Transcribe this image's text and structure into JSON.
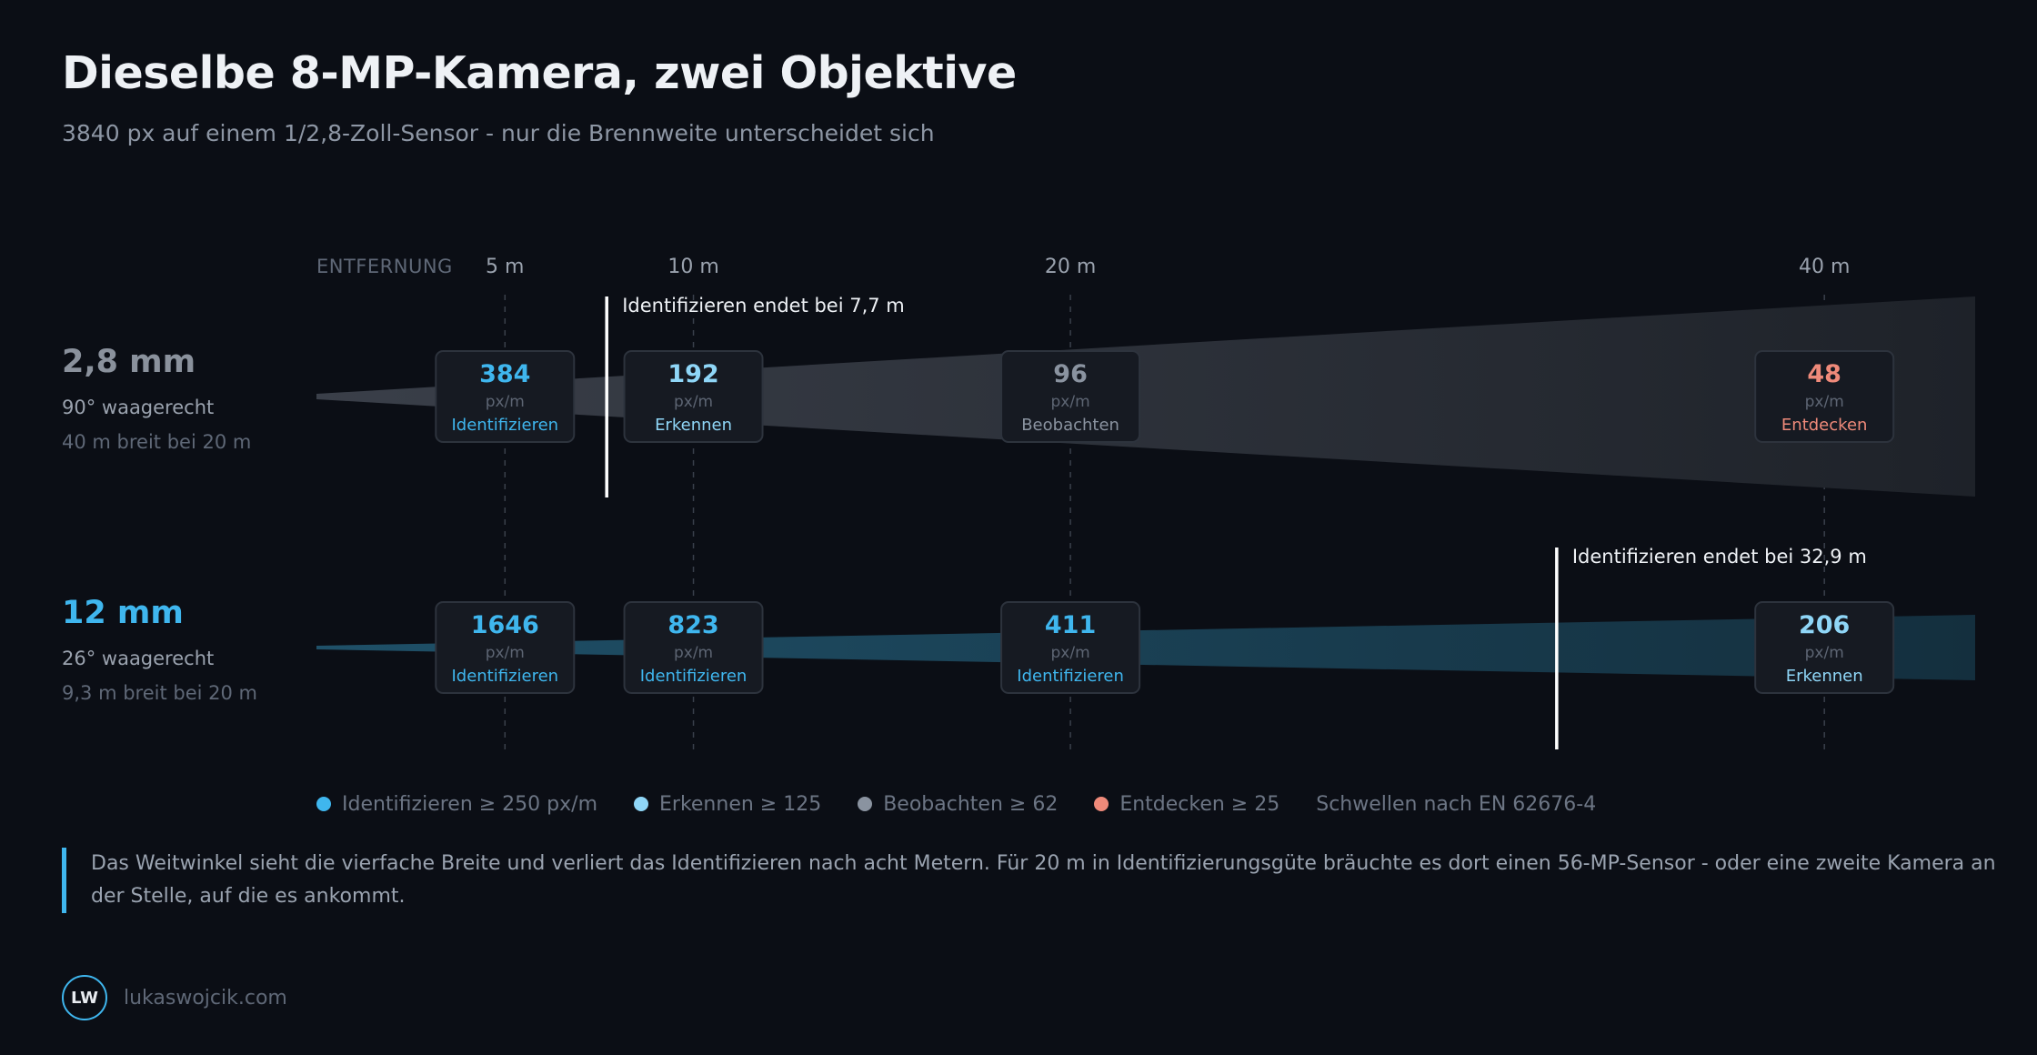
{
  "title": "Dieselbe 8-MP-Kamera, zwei Objektive",
  "subtitle": "3840 px auf einem 1/2,8-Zoll-Sensor - nur die Brennweite unterscheidet sich",
  "axis_label": "ENTFERNUNG",
  "colors": {
    "identify": "#3fb6ee",
    "recognize": "#8fd6f7",
    "observe": "#8a93a0",
    "detect": "#ef8a7a",
    "accent": "#3fb6ee",
    "wide_beam": "#3a3f49",
    "tele_beam": "#1f5068"
  },
  "chart_data": {
    "type": "diagram",
    "x_unit": "m",
    "distances": [
      "5 m",
      "10 m",
      "20 m",
      "40 m"
    ],
    "distance_values": [
      5,
      10,
      20,
      40
    ],
    "x_range": [
      0,
      44
    ],
    "lenses": [
      {
        "name": "2,8 mm",
        "fov": "90° waagerecht",
        "width": "40 m breit bei 20 m",
        "beam": "wide",
        "limit_m": 7.7,
        "limit_label": "Identifizieren endet bei 7,7 m",
        "points": [
          {
            "value": "384",
            "unit": "px/m",
            "label": "Identifizieren",
            "level": "identify"
          },
          {
            "value": "192",
            "unit": "px/m",
            "label": "Erkennen",
            "level": "recognize"
          },
          {
            "value": "96",
            "unit": "px/m",
            "label": "Beobachten",
            "level": "observe"
          },
          {
            "value": "48",
            "unit": "px/m",
            "label": "Entdecken",
            "level": "detect"
          }
        ]
      },
      {
        "name": "12 mm",
        "fov": "26° waagerecht",
        "width": "9,3 m breit bei 20 m",
        "beam": "tele",
        "limit_m": 32.9,
        "limit_label": "Identifizieren endet bei 32,9 m",
        "points": [
          {
            "value": "1646",
            "unit": "px/m",
            "label": "Identifizieren",
            "level": "identify"
          },
          {
            "value": "823",
            "unit": "px/m",
            "label": "Identifizieren",
            "level": "identify"
          },
          {
            "value": "411",
            "unit": "px/m",
            "label": "Identifizieren",
            "level": "identify"
          },
          {
            "value": "206",
            "unit": "px/m",
            "label": "Erkennen",
            "level": "recognize"
          }
        ]
      }
    ]
  },
  "legend": {
    "items": [
      {
        "label": "Identifizieren ≥ 250 px/m",
        "level": "identify"
      },
      {
        "label": "Erkennen ≥ 125",
        "level": "recognize"
      },
      {
        "label": "Beobachten ≥ 62",
        "level": "observe"
      },
      {
        "label": "Entdecken ≥ 25",
        "level": "detect"
      }
    ],
    "note": "Schwellen nach EN 62676-4"
  },
  "callout": "Das Weitwinkel sieht die vierfache Breite und verliert das Identifizieren nach acht Metern. Für 20 m in Identifizierungsgüte bräuchte es dort einen 56-MP-Sensor - oder eine zweite Kamera an der Stelle, auf die es ankommt.",
  "footer": {
    "logo": "LW",
    "site": "lukaswojcik.com"
  }
}
